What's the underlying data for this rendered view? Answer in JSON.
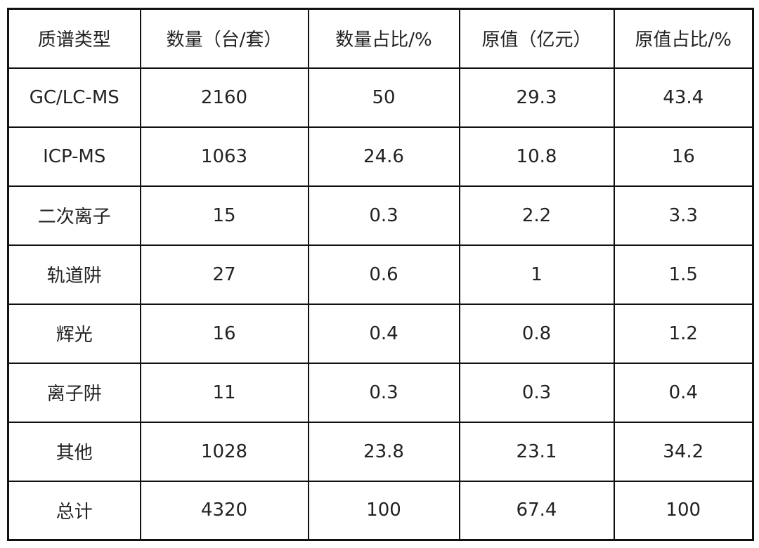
{
  "table": {
    "headers": [
      "质谱类型",
      "数量（台/套）",
      "数量占比/%",
      "原值（亿元）",
      "原值占比/%"
    ],
    "rows": [
      [
        "GC/LC-MS",
        "2160",
        "50",
        "29.3",
        "43.4"
      ],
      [
        "ICP-MS",
        "1063",
        "24.6",
        "10.8",
        "16"
      ],
      [
        "二次离子",
        "15",
        "0.3",
        "2.2",
        "3.3"
      ],
      [
        "轨道阱",
        "27",
        "0.6",
        "1",
        "1.5"
      ],
      [
        "辉光",
        "16",
        "0.4",
        "0.8",
        "1.2"
      ],
      [
        "离子阱",
        "11",
        "0.3",
        "0.3",
        "0.4"
      ],
      [
        "其他",
        "1028",
        "23.8",
        "23.1",
        "34.2"
      ],
      [
        "总计",
        "4320",
        "100",
        "67.4",
        "100"
      ]
    ]
  }
}
